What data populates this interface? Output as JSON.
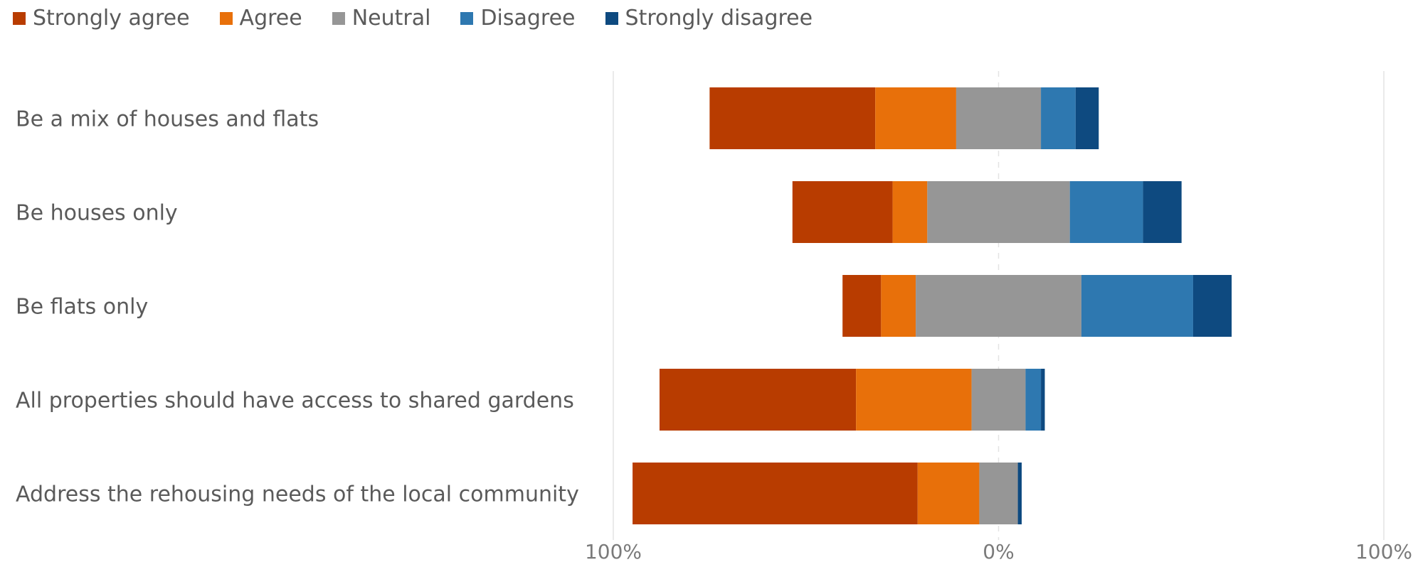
{
  "chart_data": {
    "type": "bar",
    "orientation": "horizontal",
    "stacked": "diverging",
    "categories": [
      "Be a mix of houses and flats",
      "Be houses only",
      "Be flats only",
      "All properties should have access to shared gardens",
      "Address the rehousing needs of the local community"
    ],
    "series": [
      {
        "name": "Strongly agree",
        "color": "#B83C00",
        "values": [
          43,
          26,
          10,
          51,
          74
        ]
      },
      {
        "name": "Agree",
        "color": "#E8700A",
        "values": [
          21,
          9,
          9,
          30,
          16
        ]
      },
      {
        "name": "Neutral",
        "color": "#969696",
        "values": [
          22,
          37,
          43,
          14,
          10
        ]
      },
      {
        "name": "Disagree",
        "color": "#2E78B0",
        "values": [
          9,
          19,
          29,
          4,
          0
        ]
      },
      {
        "name": "Strongly disagree",
        "color": "#0E4A80",
        "values": [
          6,
          10,
          10,
          1,
          1
        ]
      }
    ],
    "xlim": [
      -100,
      100
    ],
    "x_ticks": [
      {
        "value": -100,
        "label": "100%"
      },
      {
        "value": 0,
        "label": "0%"
      },
      {
        "value": 100,
        "label": "100%"
      }
    ],
    "legend_position": "top-left",
    "grid": "vertical gridlines at tick positions"
  }
}
